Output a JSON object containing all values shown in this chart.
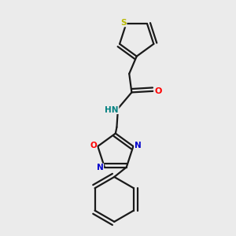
{
  "bg_color": "#ebebeb",
  "bond_color": "#1a1a1a",
  "bond_width": 1.6,
  "S_color": "#b8b800",
  "O_color": "#ff0000",
  "N_color": "#0000cc",
  "NH_color": "#008080",
  "figsize": [
    3.0,
    3.0
  ],
  "dpi": 100,
  "xlim": [
    0.2,
    0.85
  ],
  "ylim": [
    0.03,
    0.97
  ]
}
